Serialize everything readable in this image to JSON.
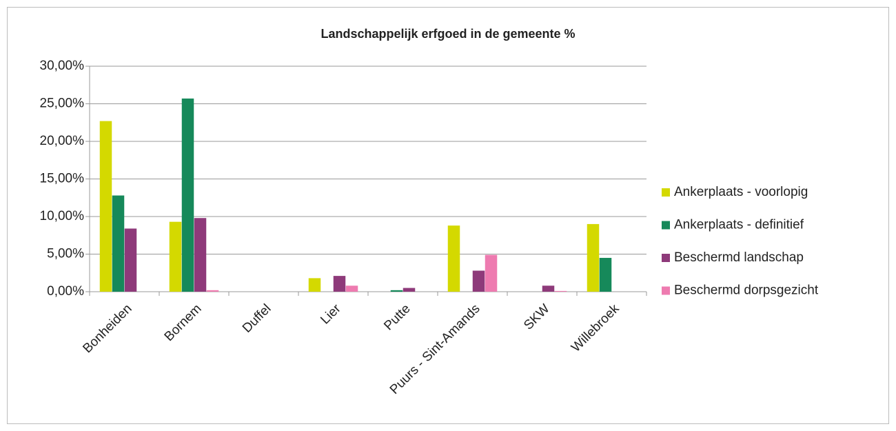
{
  "chart_data": {
    "type": "bar",
    "title": "Landschappelijk erfgoed in de gemeente %",
    "categories": [
      "Bonheiden",
      "Bornem",
      "Duffel",
      "Lier",
      "Putte",
      "Puurs - Sint-Amands",
      "SKW",
      "Willebroek"
    ],
    "series": [
      {
        "name": "Ankerplaats - voorlopig",
        "color": "#d4d900",
        "values": [
          22.7,
          9.3,
          0,
          1.8,
          0,
          8.8,
          0,
          9.0
        ]
      },
      {
        "name": "Ankerplaats - definitief",
        "color": "#16895a",
        "values": [
          12.8,
          25.7,
          0,
          0,
          0.2,
          0,
          0,
          4.5
        ]
      },
      {
        "name": "Beschermd landschap",
        "color": "#8e3a7a",
        "values": [
          8.4,
          9.8,
          0,
          2.1,
          0.5,
          2.8,
          0.8,
          0
        ]
      },
      {
        "name": "Beschermd dorpsgezicht",
        "color": "#ee7bb0",
        "values": [
          0,
          0.2,
          0,
          0.8,
          0,
          4.9,
          0.1,
          0
        ]
      }
    ],
    "ylim": [
      0,
      30
    ],
    "yticks": [
      {
        "value": 0,
        "label": "0,00%"
      },
      {
        "value": 5,
        "label": "5,00%"
      },
      {
        "value": 10,
        "label": "10,00%"
      },
      {
        "value": 15,
        "label": "15,00%"
      },
      {
        "value": 20,
        "label": "20,00%"
      },
      {
        "value": 25,
        "label": "25,00%"
      },
      {
        "value": 30,
        "label": "30,00%"
      }
    ],
    "grid": true,
    "legend": "right"
  }
}
